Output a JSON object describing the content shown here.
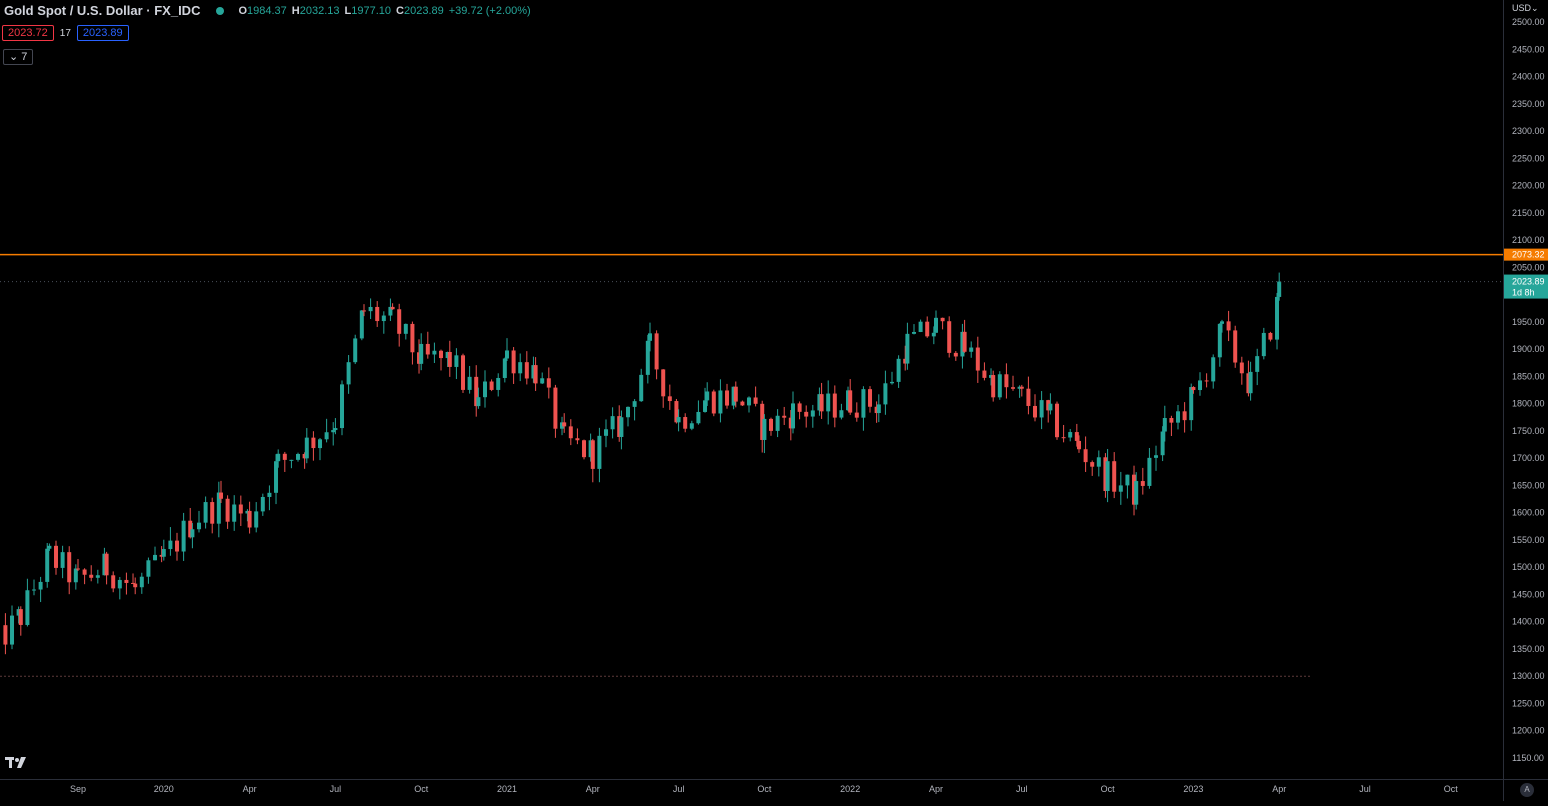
{
  "header": {
    "title": "Gold Spot / U.S. Dollar · FX_IDC",
    "ohlc": {
      "o_label": "O",
      "o_value": "1984.37",
      "h_label": "H",
      "h_value": "2032.13",
      "l_label": "L",
      "l_value": "1977.10",
      "c_label": "C",
      "c_value": "2023.89",
      "change": "+39.72 (+2.00%)"
    },
    "bid": "2023.72",
    "spread": "17",
    "ask": "2023.89",
    "indicators_toggle": "7"
  },
  "price_axis": {
    "currency": "USD",
    "ticks": [
      "2500.00",
      "2450.00",
      "2400.00",
      "2350.00",
      "2300.00",
      "2250.00",
      "2200.00",
      "2150.00",
      "2100.00",
      "2050.00",
      "1950.00",
      "1900.00",
      "1850.00",
      "1800.00",
      "1750.00",
      "1700.00",
      "1650.00",
      "1600.00",
      "1550.00",
      "1500.00",
      "1450.00",
      "1400.00",
      "1350.00",
      "1300.00",
      "1250.00",
      "1200.00",
      "1150.00"
    ],
    "resistance_label": "2073.32",
    "last_price_label": "2023.89",
    "countdown": "1d 8h"
  },
  "time_axis": {
    "labels": [
      "Sep",
      "2020",
      "Apr",
      "Jul",
      "Oct",
      "2021",
      "Apr",
      "Jul",
      "Oct",
      "2022",
      "Apr",
      "Jul",
      "Oct",
      "2023",
      "Apr",
      "Jul",
      "Oct"
    ],
    "auto_label": "A"
  },
  "colors": {
    "up": "#26a69a",
    "down": "#ef5350",
    "resistance": "#f57c00",
    "last": "#26a69a",
    "background": "#000000"
  },
  "chart_data": {
    "type": "candlestick",
    "title": "Gold Spot / U.S. Dollar · FX_IDC",
    "timeframe": "weekly",
    "ylim": [
      1120,
      2520
    ],
    "y_scale": "linear",
    "grid": false,
    "resistance_level": 2073.32,
    "last_close": 2023.89,
    "pre_chart_low": 1300,
    "series": [
      {
        "name": "Gold Spot / U.S. Dollar",
        "x": [
          "2019-06",
          "2019-07",
          "2019-08",
          "2019-09",
          "2019-10",
          "2019-11",
          "2019-12",
          "2020-01",
          "2020-02",
          "2020-03",
          "2020-04",
          "2020-05",
          "2020-06",
          "2020-07",
          "2020-08",
          "2020-09",
          "2020-10",
          "2020-11",
          "2020-12",
          "2021-01",
          "2021-02",
          "2021-03",
          "2021-04",
          "2021-05",
          "2021-06",
          "2021-07",
          "2021-08",
          "2021-09",
          "2021-10",
          "2021-11",
          "2021-12",
          "2022-01",
          "2022-02",
          "2022-03",
          "2022-04",
          "2022-05",
          "2022-06",
          "2022-07",
          "2022-08",
          "2022-09",
          "2022-10",
          "2022-11",
          "2022-12",
          "2023-01",
          "2023-02",
          "2023-03"
        ],
        "monthly_close": [
          1350,
          1410,
          1520,
          1475,
          1500,
          1460,
          1515,
          1585,
          1620,
          1590,
          1690,
          1725,
          1770,
          1970,
          1950,
          1880,
          1880,
          1800,
          1890,
          1860,
          1730,
          1710,
          1765,
          1900,
          1770,
          1810,
          1815,
          1755,
          1785,
          1790,
          1805,
          1800,
          1910,
          1940,
          1900,
          1840,
          1810,
          1770,
          1720,
          1665,
          1635,
          1750,
          1810,
          1930,
          1835,
          1990
        ]
      }
    ]
  }
}
